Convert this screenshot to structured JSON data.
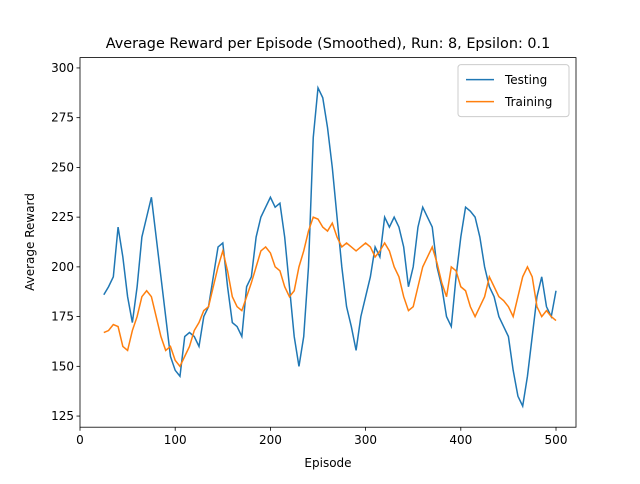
{
  "chart_data": {
    "type": "line",
    "title": "Average Reward per Episode (Smoothed), Run: 8, Epsilon: 0.1",
    "x_label": "Episode",
    "y_label": "Average Reward",
    "x": [
      25,
      30,
      35,
      40,
      45,
      50,
      55,
      60,
      65,
      70,
      75,
      80,
      85,
      90,
      95,
      100,
      105,
      110,
      115,
      120,
      125,
      130,
      135,
      140,
      145,
      150,
      155,
      160,
      165,
      170,
      175,
      180,
      185,
      190,
      195,
      200,
      205,
      210,
      215,
      220,
      225,
      230,
      235,
      240,
      245,
      250,
      255,
      260,
      265,
      270,
      275,
      280,
      285,
      290,
      295,
      300,
      305,
      310,
      315,
      320,
      325,
      330,
      335,
      340,
      345,
      350,
      355,
      360,
      365,
      370,
      375,
      380,
      385,
      390,
      395,
      400,
      405,
      410,
      415,
      420,
      425,
      430,
      435,
      440,
      445,
      450,
      455,
      460,
      465,
      470,
      475,
      480,
      485,
      490,
      495,
      500
    ],
    "series": [
      {
        "name": "Testing",
        "color": "#1f77b4",
        "values": [
          186,
          190,
          195,
          220,
          205,
          185,
          172,
          190,
          215,
          225,
          235,
          215,
          195,
          175,
          155,
          148,
          145,
          165,
          167,
          165,
          160,
          175,
          180,
          195,
          210,
          212,
          190,
          172,
          170,
          165,
          190,
          195,
          215,
          225,
          230,
          235,
          230,
          232,
          215,
          190,
          165,
          150,
          165,
          200,
          265,
          290,
          285,
          270,
          250,
          225,
          200,
          180,
          170,
          158,
          175,
          185,
          195,
          210,
          205,
          225,
          220,
          225,
          220,
          210,
          190,
          200,
          220,
          230,
          225,
          220,
          200,
          190,
          175,
          170,
          195,
          215,
          230,
          228,
          225,
          215,
          200,
          190,
          185,
          175,
          170,
          165,
          148,
          135,
          130,
          145,
          165,
          185,
          195,
          180,
          175,
          188
        ]
      },
      {
        "name": "Training",
        "color": "#ff7f0e",
        "values": [
          167,
          168,
          171,
          170,
          160,
          158,
          168,
          175,
          185,
          188,
          185,
          175,
          165,
          158,
          160,
          153,
          150,
          155,
          160,
          168,
          172,
          178,
          180,
          190,
          200,
          208,
          198,
          185,
          180,
          178,
          185,
          192,
          200,
          208,
          210,
          207,
          200,
          198,
          190,
          185,
          188,
          200,
          208,
          218,
          225,
          224,
          220,
          218,
          222,
          215,
          210,
          212,
          210,
          208,
          210,
          212,
          210,
          205,
          208,
          212,
          208,
          200,
          195,
          185,
          178,
          180,
          190,
          200,
          205,
          210,
          202,
          192,
          185,
          200,
          198,
          190,
          188,
          180,
          175,
          180,
          185,
          195,
          190,
          185,
          183,
          180,
          175,
          185,
          195,
          200,
          195,
          180,
          175,
          178,
          175,
          173
        ]
      }
    ],
    "xlim": [
      0,
      521
    ],
    "ylim": [
      119.4,
      305.2
    ],
    "xticks": [
      0,
      100,
      200,
      300,
      400,
      500
    ],
    "yticks": [
      125,
      150,
      175,
      200,
      225,
      250,
      275,
      300
    ],
    "legend": "upper right"
  }
}
